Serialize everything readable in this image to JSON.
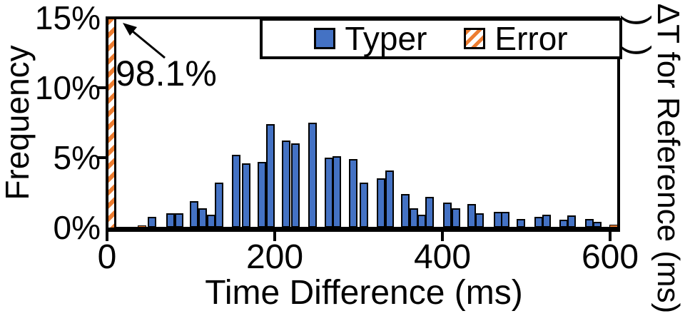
{
  "figure": {
    "right_cropped_label": "ΔT for Reference (ms)",
    "partial_glyphs": [
      ")",
      ")"
    ]
  },
  "chart_data": {
    "type": "bar",
    "subtype": "histogram",
    "title": "",
    "xlabel": "Time Difference (ms)",
    "ylabel": "Frequency",
    "xlim_ms": [
      0,
      610
    ],
    "ylim_percent": [
      0,
      15
    ],
    "grid": false,
    "bin_width_ms": 10,
    "x_ticks": [
      {
        "value": 0,
        "label": "0"
      },
      {
        "value": 200,
        "label": "200"
      },
      {
        "value": 400,
        "label": "400"
      },
      {
        "value": 600,
        "label": "600"
      }
    ],
    "y_ticks": [
      {
        "value": 0,
        "label": "0%"
      },
      {
        "value": 5,
        "label": "5%"
      },
      {
        "value": 10,
        "label": "10%"
      },
      {
        "value": 15,
        "label": "15%"
      }
    ],
    "legend": {
      "position": "top-center-inside",
      "entries": [
        {
          "label": "Typer",
          "color": "#4472C4",
          "style": "solid"
        },
        {
          "label": "Error",
          "color": "#ED7D31",
          "style": "hatched"
        }
      ]
    },
    "series": [
      {
        "name": "Typer",
        "style": "solid",
        "color": "#4472C4",
        "bins": [
          {
            "ms": 54,
            "pct": 0.75
          },
          {
            "ms": 76,
            "pct": 1.0
          },
          {
            "ms": 86,
            "pct": 1.0
          },
          {
            "ms": 104,
            "pct": 1.9
          },
          {
            "ms": 114,
            "pct": 1.4
          },
          {
            "ms": 124,
            "pct": 0.9
          },
          {
            "ms": 134,
            "pct": 3.2
          },
          {
            "ms": 154,
            "pct": 5.2
          },
          {
            "ms": 166,
            "pct": 4.6
          },
          {
            "ms": 185,
            "pct": 4.7
          },
          {
            "ms": 195,
            "pct": 7.4
          },
          {
            "ms": 214,
            "pct": 6.2
          },
          {
            "ms": 225,
            "pct": 6.0
          },
          {
            "ms": 245,
            "pct": 7.5
          },
          {
            "ms": 265,
            "pct": 5.0
          },
          {
            "ms": 274,
            "pct": 5.1
          },
          {
            "ms": 294,
            "pct": 4.9
          },
          {
            "ms": 306,
            "pct": 3.2
          },
          {
            "ms": 327,
            "pct": 3.5
          },
          {
            "ms": 337,
            "pct": 4.1
          },
          {
            "ms": 356,
            "pct": 2.4
          },
          {
            "ms": 366,
            "pct": 1.4
          },
          {
            "ms": 375,
            "pct": 0.9
          },
          {
            "ms": 385,
            "pct": 2.2
          },
          {
            "ms": 406,
            "pct": 1.8
          },
          {
            "ms": 416,
            "pct": 1.4
          },
          {
            "ms": 435,
            "pct": 1.7
          },
          {
            "ms": 444,
            "pct": 1.0
          },
          {
            "ms": 466,
            "pct": 1.1
          },
          {
            "ms": 475,
            "pct": 1.1
          },
          {
            "ms": 494,
            "pct": 0.6
          },
          {
            "ms": 515,
            "pct": 0.75
          },
          {
            "ms": 524,
            "pct": 0.9
          },
          {
            "ms": 545,
            "pct": 0.55
          },
          {
            "ms": 554,
            "pct": 0.85
          },
          {
            "ms": 575,
            "pct": 0.6
          },
          {
            "ms": 585,
            "pct": 0.4
          },
          {
            "ms": 604,
            "pct": 0.2
          }
        ]
      },
      {
        "name": "Error",
        "style": "hatched",
        "color": "#ED7D31",
        "bins": [
          {
            "ms": 0,
            "pct": 98.1,
            "clipped_at_axis_top": true
          },
          {
            "ms": 42,
            "pct": 0.12
          }
        ]
      }
    ],
    "annotations": [
      {
        "text": "98.1%",
        "points_to": "Error bar at 0 ms"
      }
    ]
  }
}
